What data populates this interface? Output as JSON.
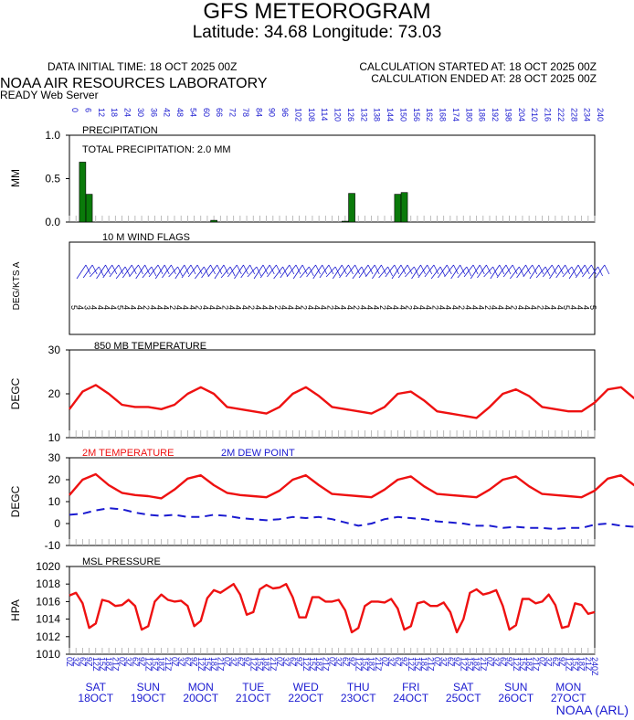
{
  "header": {
    "title": "GFS METEOROGRAM",
    "subtitle": "Latitude: 34.68 Longitude:  73.03",
    "init_time": "DATA INITIAL TIME: 18 OCT 2025 00Z",
    "calc_started": "CALCULATION STARTED AT: 18 OCT 2025 00Z",
    "calc_ended": "CALCULATION ENDED AT: 28 OCT 2025 00Z",
    "lab": "NOAA AIR RESOURCES LABORATORY",
    "server": "READY Web Server"
  },
  "footer": "NOAA (ARL)",
  "hours": [
    "0",
    "3",
    "6",
    "9",
    "12",
    "15",
    "18",
    "21"
  ],
  "days": [
    {
      "dow": "SAT",
      "date": "18OCT"
    },
    {
      "dow": "SUN",
      "date": "19OCT"
    },
    {
      "dow": "MON",
      "date": "20OCT"
    },
    {
      "dow": "TUE",
      "date": "21OCT"
    },
    {
      "dow": "WED",
      "date": "22OCT"
    },
    {
      "dow": "THU",
      "date": "23OCT"
    },
    {
      "dow": "FRI",
      "date": "24OCT"
    },
    {
      "dow": "SAT",
      "date": "25OCT"
    },
    {
      "dow": "SUN",
      "date": "26OCT"
    },
    {
      "dow": "MON",
      "date": "27OCT"
    }
  ],
  "colors": {
    "red": "#ee1111",
    "blue": "#1a1ad0",
    "green": "#0a7a0a"
  },
  "chart_data": [
    {
      "type": "bar",
      "title": "PRECIPITATION",
      "annotation": "TOTAL PRECIPITATION:   2.0 MM",
      "ylabel": "MM",
      "ylim": [
        0,
        1.0
      ],
      "yticks": [
        "0.0",
        "0.5",
        "1.0"
      ],
      "x_hours": [
        6,
        9,
        66,
        126,
        129,
        150,
        153
      ],
      "values": [
        0.69,
        0.32,
        0.02,
        0.01,
        0.33,
        0.32,
        0.34
      ],
      "top_axis_ticks_hours": [
        0,
        6,
        12,
        18,
        24,
        30,
        36,
        42,
        48,
        54,
        60,
        66,
        72,
        78,
        84,
        90,
        96,
        102,
        108,
        114,
        120,
        126,
        132,
        138,
        144,
        150,
        156,
        162,
        168,
        174,
        180,
        186,
        192,
        198,
        204,
        210,
        216,
        222,
        228,
        234,
        240
      ]
    },
    {
      "type": "wind_barbs",
      "title": "10 M  WIND FLAGS",
      "ylabel": "DEG/KTS  A",
      "speed_labels": [
        "5",
        "4",
        "3",
        "4",
        "4",
        "4",
        "4",
        "5",
        "4",
        "4",
        "4",
        "2",
        "4",
        "4",
        "4",
        "2",
        "4",
        "4",
        "4",
        "2",
        "4",
        "4",
        "4",
        "2",
        "4",
        "4",
        "4",
        "2",
        "4",
        "4",
        "4",
        "2",
        "4",
        "4",
        "4",
        "2",
        "4",
        "4",
        "4",
        "2",
        "4",
        "4",
        "4",
        "2",
        "4",
        "4",
        "4",
        "2",
        "4",
        "4",
        "4",
        "2",
        "4",
        "4",
        "4",
        "2",
        "4",
        "4",
        "4",
        "2",
        "4",
        "4",
        "4",
        "2",
        "4",
        "4",
        "4",
        "2",
        "4",
        "4",
        "4",
        "2",
        "4",
        "4",
        "4",
        "5",
        "4",
        "4",
        "4",
        "5"
      ]
    },
    {
      "type": "line",
      "title": "850 MB  TEMPERATURE",
      "ylabel": "DEGC",
      "ylim": [
        10,
        30
      ],
      "yticks": [
        "10",
        "20",
        "30"
      ],
      "x_step_hours": 6,
      "values": [
        16.5,
        20.5,
        22,
        20,
        17.5,
        17,
        17,
        16.5,
        17.5,
        20,
        21.5,
        20,
        17,
        16.5,
        16,
        15.5,
        17,
        20,
        21.5,
        19.5,
        17,
        16.5,
        16,
        15.5,
        17,
        20,
        20.5,
        18.5,
        16,
        15.5,
        15,
        14.5,
        17,
        20,
        21,
        19.5,
        17,
        16.5,
        16,
        16,
        18,
        21,
        21.5,
        19,
        17,
        16.5,
        16,
        15.5,
        17,
        20.5,
        21.5,
        19,
        17,
        16,
        15.5,
        15,
        17,
        20.5,
        21.5,
        19,
        17,
        16.5,
        16,
        15.5,
        17,
        21,
        22,
        20,
        17,
        16.5,
        16,
        15.5,
        18,
        22,
        23,
        20.5,
        18,
        17.5,
        17,
        16.5,
        17
      ]
    },
    {
      "type": "line",
      "ylabel": "DEGC",
      "ylim": [
        -10,
        30
      ],
      "yticks": [
        "-10",
        "0",
        "10",
        "20",
        "30"
      ],
      "x_step_hours": 6,
      "series": [
        {
          "name": "2M TEMPERATURE",
          "color": "#ee1111",
          "style": "solid",
          "values": [
            13,
            20,
            22.5,
            17.5,
            14,
            13,
            12.5,
            11.5,
            15.5,
            20.5,
            22,
            17.5,
            14,
            13,
            12.5,
            12,
            15,
            20,
            22,
            17.5,
            13.5,
            13,
            12.5,
            12,
            15.5,
            20,
            21.5,
            17,
            13.5,
            13,
            12.5,
            12,
            15.5,
            20,
            21.5,
            17,
            13.5,
            13,
            12.5,
            12,
            15,
            20.5,
            22,
            17.5,
            13.5,
            13,
            12.5,
            12,
            15.5,
            20.5,
            21.5,
            17,
            13.5,
            13,
            12.5,
            12,
            15.5,
            20.5,
            22,
            17.5,
            13.5,
            13,
            12.5,
            12,
            15.5,
            21,
            22.5,
            17.5,
            13.5,
            13,
            12.5,
            12,
            16,
            22,
            23,
            18,
            14,
            14,
            13.5,
            13,
            12.5
          ]
        },
        {
          "name": "2M  DEW POINT",
          "color": "#1a1ad0",
          "style": "dashed",
          "values": [
            4,
            4.5,
            6,
            7,
            6.5,
            5,
            4,
            3.5,
            4,
            3,
            3,
            4,
            3.5,
            2.5,
            2,
            1.5,
            2,
            3,
            2.5,
            3,
            2,
            0.5,
            -1,
            0,
            2,
            3,
            2.5,
            2,
            1,
            0.5,
            0,
            -1,
            -1,
            -2,
            -1.5,
            -2,
            -2,
            -2.5,
            -2,
            -2,
            -0.5,
            0,
            -1,
            -1.5,
            -1.5,
            -2,
            -2,
            -2.5,
            -1,
            2,
            0,
            -1.5,
            -2,
            -2,
            -1,
            -2,
            0,
            0,
            -0.5,
            -1,
            -1,
            -1,
            -1,
            -1,
            0,
            0,
            -1,
            -1,
            -1,
            -1.5,
            -1.5,
            -2,
            -1,
            -1,
            2,
            1,
            0,
            -1,
            -1.5,
            -1,
            -1,
            -2.5
          ]
        }
      ]
    },
    {
      "type": "line",
      "title": "MSL PRESSURE",
      "ylabel": "HPA",
      "ylim": [
        1010,
        1020
      ],
      "yticks": [
        "1010",
        "1012",
        "1014",
        "1016",
        "1018",
        "1020"
      ],
      "x_step_hours": 3,
      "values": [
        1016.7,
        1017,
        1015.8,
        1013,
        1013.5,
        1016.2,
        1016,
        1015.5,
        1015.6,
        1016.2,
        1015.5,
        1012.8,
        1013.2,
        1016,
        1016.8,
        1016.2,
        1016,
        1016.1,
        1015.5,
        1013.2,
        1013.8,
        1016.4,
        1017.3,
        1017,
        1017.5,
        1018,
        1016.8,
        1014.5,
        1014.8,
        1017.4,
        1017.9,
        1017.5,
        1017.6,
        1018,
        1016.5,
        1014.2,
        1014.2,
        1016.5,
        1016.5,
        1016,
        1016,
        1016.2,
        1015,
        1012.5,
        1013,
        1015.5,
        1016,
        1016,
        1015.9,
        1016.3,
        1015.2,
        1012.8,
        1013.2,
        1015.8,
        1016,
        1015.5,
        1015.5,
        1015.9,
        1014.8,
        1012.5,
        1014,
        1017,
        1017.4,
        1016.8,
        1017,
        1017.3,
        1015.5,
        1012.8,
        1013.3,
        1016.3,
        1016.3,
        1015.8,
        1016,
        1016.8,
        1015.6,
        1013,
        1013.2,
        1015.8,
        1015.6,
        1014.6,
        1014.8
      ]
    }
  ]
}
